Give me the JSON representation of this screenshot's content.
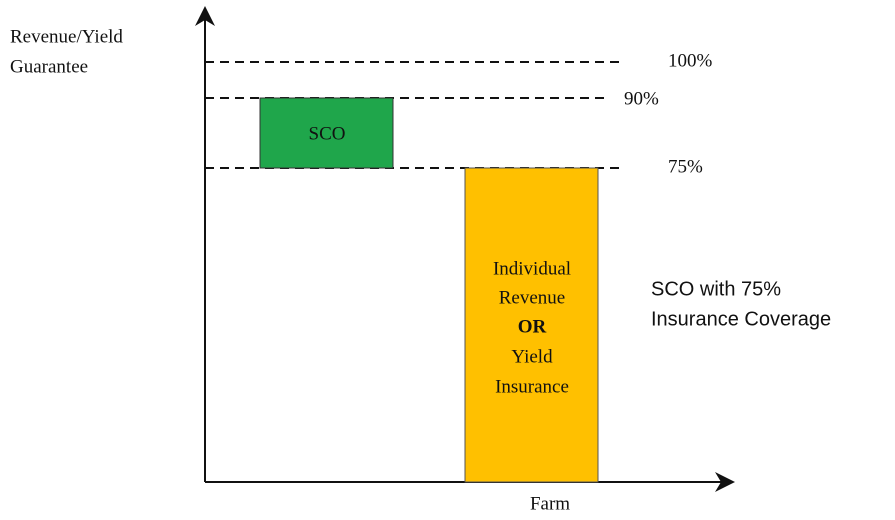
{
  "y_axis_label": [
    "Revenue/Yield",
    "Guarantee"
  ],
  "x_axis_label": "Farm",
  "levels": [
    "100%",
    "90%",
    "75%"
  ],
  "sco_box": {
    "label": "SCO"
  },
  "base_box": {
    "lines": [
      "Individual",
      "Revenue",
      "OR",
      "Yield",
      "Insurance"
    ]
  },
  "caption": [
    "SCO with 75%",
    "Insurance Coverage"
  ]
}
